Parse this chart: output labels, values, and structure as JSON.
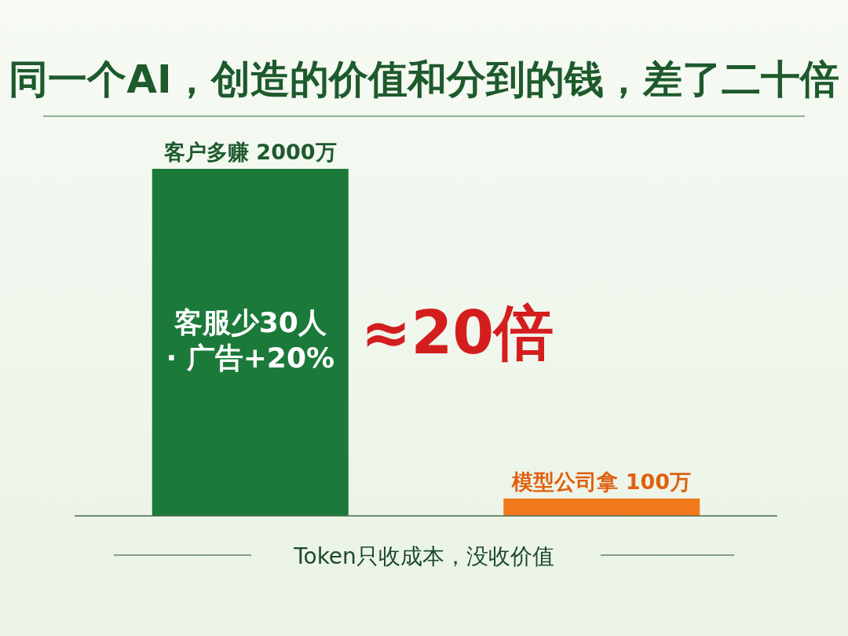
{
  "chart_data": {
    "type": "bar",
    "title": "同一个AI，创造的价值和分到的钱，差了二十倍",
    "categories": [
      null,
      null
    ],
    "values": [
      2000,
      100
    ],
    "colors": [
      "#1b7a3a",
      "#f27a1c"
    ],
    "value_labels": [
      "客户多赚 2000万",
      "模型公司拿 100万"
    ],
    "annotations": [
      "客服少30人\n· 广告+20%",
      "≈20倍",
      "Token只收成本，没收价值"
    ]
  }
}
